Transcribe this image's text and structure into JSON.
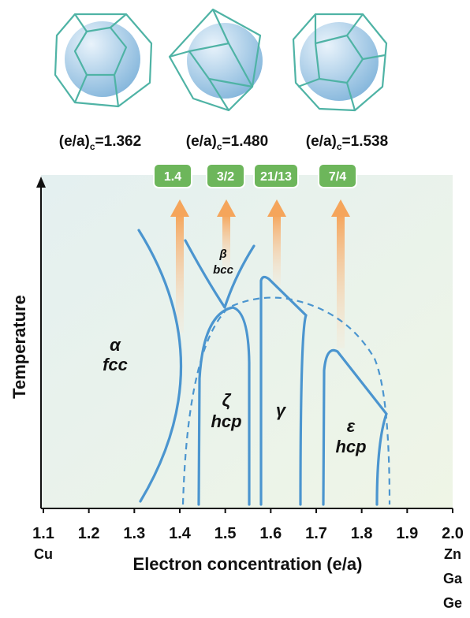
{
  "top_labels": [
    {
      "prefix": "(e/a)",
      "sub": "c",
      "value": "=1.362"
    },
    {
      "prefix": "(e/a)",
      "sub": "c",
      "value": "=1.480"
    },
    {
      "prefix": "(e/a)",
      "sub": "c",
      "value": "=1.538"
    }
  ],
  "badges": [
    "1.4",
    "3/2",
    "21/13",
    "7/4"
  ],
  "phases": [
    {
      "symbol": "α",
      "structure": "fcc"
    },
    {
      "symbol": "β",
      "structure": "bcc"
    },
    {
      "symbol": "ζ",
      "structure": "hcp"
    },
    {
      "symbol": "γ"
    },
    {
      "symbol": "ε",
      "structure": "hcp"
    }
  ],
  "axis": {
    "y_label": "Temperature",
    "x_label": "Electron concentration (e/a)",
    "xlim": [
      1.1,
      2
    ],
    "xticks": [
      1.1,
      1.2,
      1.3,
      1.4,
      1.5,
      1.6,
      1.7,
      1.8,
      1.9,
      {
        "value": 2,
        "label": "2.0"
      }
    ],
    "left_element": "Cu",
    "right_elements": [
      "Zn",
      "Ga",
      "Ge"
    ]
  }
}
